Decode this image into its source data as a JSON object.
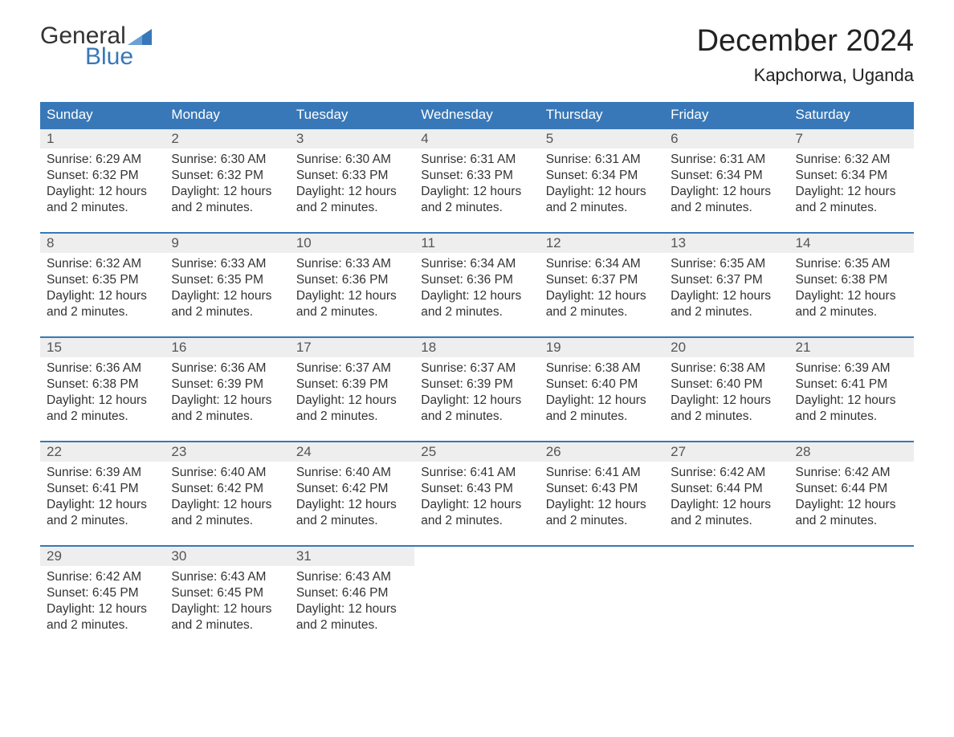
{
  "logo": {
    "general": "General",
    "blue": "Blue",
    "flag_color": "#3878b8"
  },
  "title": {
    "month": "December 2024",
    "location": "Kapchorwa, Uganda"
  },
  "colors": {
    "header_bg": "#3878b8",
    "header_text": "#ffffff",
    "date_bg": "#eeeeee",
    "week_border": "#3878b8",
    "text": "#333333",
    "date_number_text": "#555555",
    "page_bg": "#ffffff"
  },
  "typography": {
    "title_fontsize": 38,
    "location_fontsize": 22,
    "day_header_fontsize": 17,
    "date_number_fontsize": 17,
    "cell_text_fontsize": 15.5,
    "logo_fontsize": 30
  },
  "layout": {
    "columns": 7,
    "week_top_border_width": 2,
    "cell_min_height": 90
  },
  "day_headers": [
    "Sunday",
    "Monday",
    "Tuesday",
    "Wednesday",
    "Thursday",
    "Friday",
    "Saturday"
  ],
  "weeks": [
    [
      {
        "date": "1",
        "sunrise": "Sunrise: 6:29 AM",
        "sunset": "Sunset: 6:32 PM",
        "daylight1": "Daylight: 12 hours",
        "daylight2": "and 2 minutes."
      },
      {
        "date": "2",
        "sunrise": "Sunrise: 6:30 AM",
        "sunset": "Sunset: 6:32 PM",
        "daylight1": "Daylight: 12 hours",
        "daylight2": "and 2 minutes."
      },
      {
        "date": "3",
        "sunrise": "Sunrise: 6:30 AM",
        "sunset": "Sunset: 6:33 PM",
        "daylight1": "Daylight: 12 hours",
        "daylight2": "and 2 minutes."
      },
      {
        "date": "4",
        "sunrise": "Sunrise: 6:31 AM",
        "sunset": "Sunset: 6:33 PM",
        "daylight1": "Daylight: 12 hours",
        "daylight2": "and 2 minutes."
      },
      {
        "date": "5",
        "sunrise": "Sunrise: 6:31 AM",
        "sunset": "Sunset: 6:34 PM",
        "daylight1": "Daylight: 12 hours",
        "daylight2": "and 2 minutes."
      },
      {
        "date": "6",
        "sunrise": "Sunrise: 6:31 AM",
        "sunset": "Sunset: 6:34 PM",
        "daylight1": "Daylight: 12 hours",
        "daylight2": "and 2 minutes."
      },
      {
        "date": "7",
        "sunrise": "Sunrise: 6:32 AM",
        "sunset": "Sunset: 6:34 PM",
        "daylight1": "Daylight: 12 hours",
        "daylight2": "and 2 minutes."
      }
    ],
    [
      {
        "date": "8",
        "sunrise": "Sunrise: 6:32 AM",
        "sunset": "Sunset: 6:35 PM",
        "daylight1": "Daylight: 12 hours",
        "daylight2": "and 2 minutes."
      },
      {
        "date": "9",
        "sunrise": "Sunrise: 6:33 AM",
        "sunset": "Sunset: 6:35 PM",
        "daylight1": "Daylight: 12 hours",
        "daylight2": "and 2 minutes."
      },
      {
        "date": "10",
        "sunrise": "Sunrise: 6:33 AM",
        "sunset": "Sunset: 6:36 PM",
        "daylight1": "Daylight: 12 hours",
        "daylight2": "and 2 minutes."
      },
      {
        "date": "11",
        "sunrise": "Sunrise: 6:34 AM",
        "sunset": "Sunset: 6:36 PM",
        "daylight1": "Daylight: 12 hours",
        "daylight2": "and 2 minutes."
      },
      {
        "date": "12",
        "sunrise": "Sunrise: 6:34 AM",
        "sunset": "Sunset: 6:37 PM",
        "daylight1": "Daylight: 12 hours",
        "daylight2": "and 2 minutes."
      },
      {
        "date": "13",
        "sunrise": "Sunrise: 6:35 AM",
        "sunset": "Sunset: 6:37 PM",
        "daylight1": "Daylight: 12 hours",
        "daylight2": "and 2 minutes."
      },
      {
        "date": "14",
        "sunrise": "Sunrise: 6:35 AM",
        "sunset": "Sunset: 6:38 PM",
        "daylight1": "Daylight: 12 hours",
        "daylight2": "and 2 minutes."
      }
    ],
    [
      {
        "date": "15",
        "sunrise": "Sunrise: 6:36 AM",
        "sunset": "Sunset: 6:38 PM",
        "daylight1": "Daylight: 12 hours",
        "daylight2": "and 2 minutes."
      },
      {
        "date": "16",
        "sunrise": "Sunrise: 6:36 AM",
        "sunset": "Sunset: 6:39 PM",
        "daylight1": "Daylight: 12 hours",
        "daylight2": "and 2 minutes."
      },
      {
        "date": "17",
        "sunrise": "Sunrise: 6:37 AM",
        "sunset": "Sunset: 6:39 PM",
        "daylight1": "Daylight: 12 hours",
        "daylight2": "and 2 minutes."
      },
      {
        "date": "18",
        "sunrise": "Sunrise: 6:37 AM",
        "sunset": "Sunset: 6:39 PM",
        "daylight1": "Daylight: 12 hours",
        "daylight2": "and 2 minutes."
      },
      {
        "date": "19",
        "sunrise": "Sunrise: 6:38 AM",
        "sunset": "Sunset: 6:40 PM",
        "daylight1": "Daylight: 12 hours",
        "daylight2": "and 2 minutes."
      },
      {
        "date": "20",
        "sunrise": "Sunrise: 6:38 AM",
        "sunset": "Sunset: 6:40 PM",
        "daylight1": "Daylight: 12 hours",
        "daylight2": "and 2 minutes."
      },
      {
        "date": "21",
        "sunrise": "Sunrise: 6:39 AM",
        "sunset": "Sunset: 6:41 PM",
        "daylight1": "Daylight: 12 hours",
        "daylight2": "and 2 minutes."
      }
    ],
    [
      {
        "date": "22",
        "sunrise": "Sunrise: 6:39 AM",
        "sunset": "Sunset: 6:41 PM",
        "daylight1": "Daylight: 12 hours",
        "daylight2": "and 2 minutes."
      },
      {
        "date": "23",
        "sunrise": "Sunrise: 6:40 AM",
        "sunset": "Sunset: 6:42 PM",
        "daylight1": "Daylight: 12 hours",
        "daylight2": "and 2 minutes."
      },
      {
        "date": "24",
        "sunrise": "Sunrise: 6:40 AM",
        "sunset": "Sunset: 6:42 PM",
        "daylight1": "Daylight: 12 hours",
        "daylight2": "and 2 minutes."
      },
      {
        "date": "25",
        "sunrise": "Sunrise: 6:41 AM",
        "sunset": "Sunset: 6:43 PM",
        "daylight1": "Daylight: 12 hours",
        "daylight2": "and 2 minutes."
      },
      {
        "date": "26",
        "sunrise": "Sunrise: 6:41 AM",
        "sunset": "Sunset: 6:43 PM",
        "daylight1": "Daylight: 12 hours",
        "daylight2": "and 2 minutes."
      },
      {
        "date": "27",
        "sunrise": "Sunrise: 6:42 AM",
        "sunset": "Sunset: 6:44 PM",
        "daylight1": "Daylight: 12 hours",
        "daylight2": "and 2 minutes."
      },
      {
        "date": "28",
        "sunrise": "Sunrise: 6:42 AM",
        "sunset": "Sunset: 6:44 PM",
        "daylight1": "Daylight: 12 hours",
        "daylight2": "and 2 minutes."
      }
    ],
    [
      {
        "date": "29",
        "sunrise": "Sunrise: 6:42 AM",
        "sunset": "Sunset: 6:45 PM",
        "daylight1": "Daylight: 12 hours",
        "daylight2": "and 2 minutes."
      },
      {
        "date": "30",
        "sunrise": "Sunrise: 6:43 AM",
        "sunset": "Sunset: 6:45 PM",
        "daylight1": "Daylight: 12 hours",
        "daylight2": "and 2 minutes."
      },
      {
        "date": "31",
        "sunrise": "Sunrise: 6:43 AM",
        "sunset": "Sunset: 6:46 PM",
        "daylight1": "Daylight: 12 hours",
        "daylight2": "and 2 minutes."
      },
      null,
      null,
      null,
      null
    ]
  ]
}
